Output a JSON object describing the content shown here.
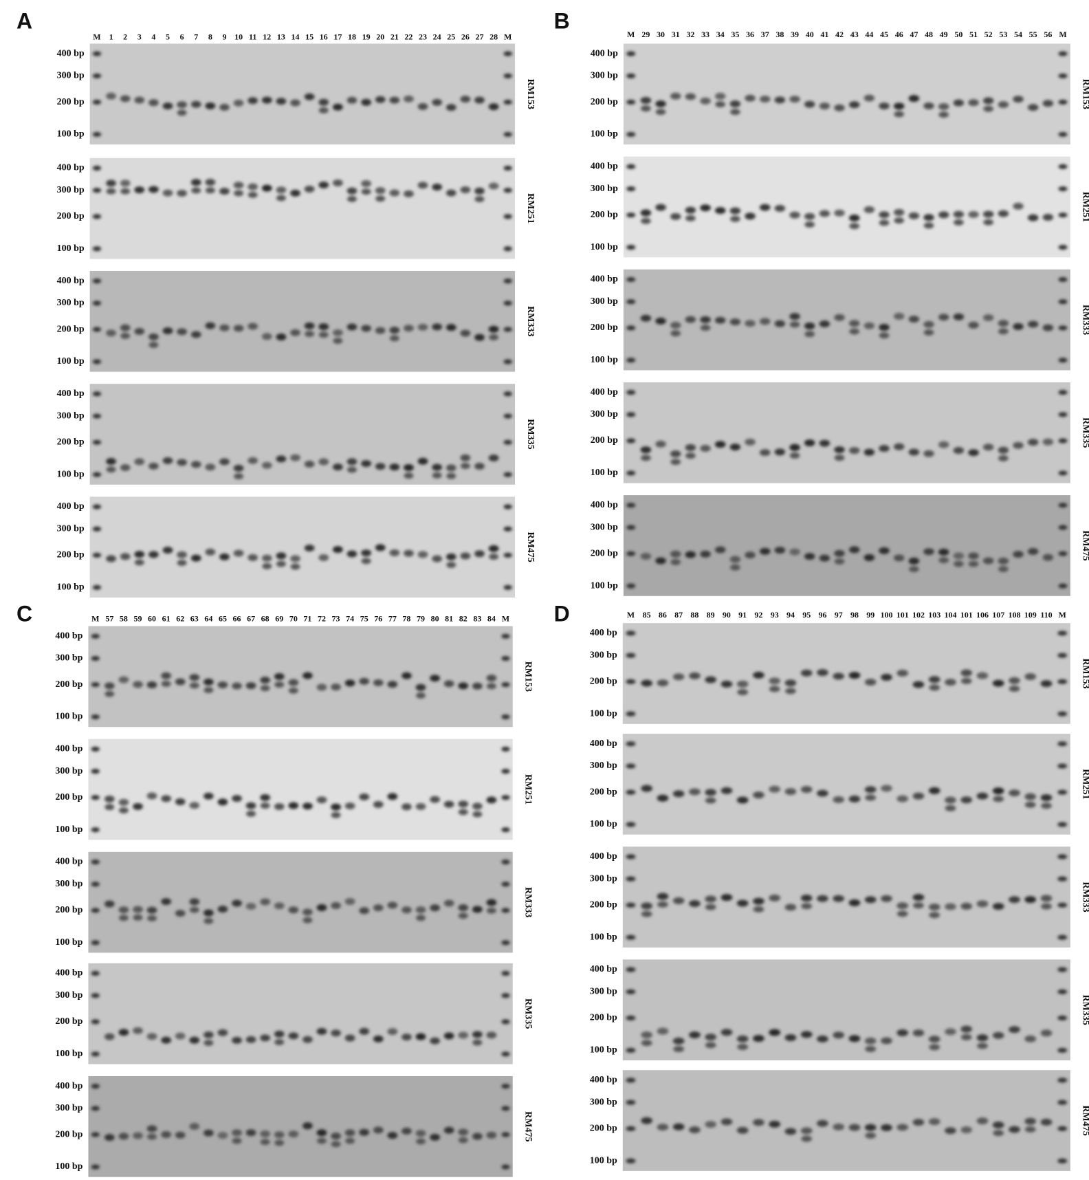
{
  "panels": [
    {
      "letter": "A",
      "lanes": [
        "M",
        "1",
        "2",
        "3",
        "4",
        "5",
        "6",
        "7",
        "8",
        "9",
        "10",
        "11",
        "12",
        "13",
        "14",
        "15",
        "16",
        "17",
        "18",
        "19",
        "20",
        "21",
        "22",
        "23",
        "24",
        "25",
        "26",
        "27",
        "28",
        "M"
      ],
      "gels": [
        {
          "marker": "RM153",
          "ladder": [
            "400 bp",
            "300 bp",
            "200 bp",
            "100 bp"
          ]
        },
        {
          "marker": "RM251",
          "ladder": [
            "400 bp",
            "300 bp",
            "200 bp",
            "100 bp"
          ]
        },
        {
          "marker": "RM333",
          "ladder": [
            "400 bp",
            "300 bp",
            "200 bp",
            "100 bp"
          ]
        },
        {
          "marker": "RM335",
          "ladder": [
            "400 bp",
            "300 bp",
            "200 bp",
            "100 bp"
          ]
        },
        {
          "marker": "RM475",
          "ladder": [
            "400 bp",
            "300 bp",
            "200 bp",
            "100 bp"
          ]
        }
      ]
    },
    {
      "letter": "B",
      "lanes": [
        "M",
        "29",
        "30",
        "31",
        "32",
        "33",
        "34",
        "35",
        "36",
        "37",
        "38",
        "39",
        "40",
        "41",
        "42",
        "43",
        "44",
        "45",
        "46",
        "47",
        "48",
        "49",
        "50",
        "51",
        "52",
        "53",
        "54",
        "55",
        "56",
        "M"
      ],
      "gels": [
        {
          "marker": "RM153",
          "ladder": [
            "400 bp",
            "300 bp",
            "200 bp",
            "100 bp"
          ]
        },
        {
          "marker": "RM251",
          "ladder": [
            "400 bp",
            "300 bp",
            "200 bp",
            "100 bp"
          ]
        },
        {
          "marker": "RM333",
          "ladder": [
            "400 bp",
            "300 bp",
            "200 bp",
            "100 bp"
          ]
        },
        {
          "marker": "RM335",
          "ladder": [
            "400 bp",
            "300 bp",
            "200 bp",
            "100 bp"
          ]
        },
        {
          "marker": "RM475",
          "ladder": [
            "400 bp",
            "300 bp",
            "200 bp",
            "100 bp"
          ]
        }
      ]
    },
    {
      "letter": "C",
      "lanes": [
        "M",
        "57",
        "58",
        "59",
        "60",
        "61",
        "62",
        "63",
        "64",
        "65",
        "66",
        "67",
        "68",
        "69",
        "70",
        "71",
        "72",
        "73",
        "74",
        "75",
        "76",
        "77",
        "78",
        "79",
        "80",
        "81",
        "82",
        "83",
        "84",
        "M"
      ],
      "gels": [
        {
          "marker": "RM153",
          "ladder": [
            "400 bp",
            "300 bp",
            "200 bp",
            "100 bp"
          ]
        },
        {
          "marker": "RM251",
          "ladder": [
            "400 bp",
            "300 bp",
            "200 bp",
            "100 bp"
          ]
        },
        {
          "marker": "RM333",
          "ladder": [
            "400 bp",
            "300 bp",
            "200 bp",
            "100 bp"
          ]
        },
        {
          "marker": "RM335",
          "ladder": [
            "400 bp",
            "300 bp",
            "200 bp",
            "100 bp"
          ]
        },
        {
          "marker": "RM475",
          "ladder": [
            "400 bp",
            "300 bp",
            "200 bp",
            "100 bp"
          ]
        }
      ]
    },
    {
      "letter": "D",
      "lanes": [
        "M",
        "85",
        "86",
        "87",
        "88",
        "89",
        "90",
        "91",
        "92",
        "93",
        "94",
        "95",
        "96",
        "97",
        "98",
        "99",
        "100",
        "101",
        "102",
        "103",
        "104",
        "101",
        "106",
        "107",
        "108",
        "109",
        "110",
        "M"
      ],
      "gels": [
        {
          "marker": "RM153",
          "ladder": [
            "400 bp",
            "300 bp",
            "200 bp",
            "100 bp"
          ]
        },
        {
          "marker": "RM251",
          "ladder": [
            "400 bp",
            "300 bp",
            "200 bp",
            "100 bp"
          ]
        },
        {
          "marker": "RM333",
          "ladder": [
            "400 bp",
            "300 bp",
            "200 bp",
            "100 bp"
          ]
        },
        {
          "marker": "RM335",
          "ladder": [
            "400 bp",
            "300 bp",
            "200 bp",
            "100 bp"
          ]
        },
        {
          "marker": "RM475",
          "ladder": [
            "400 bp",
            "300 bp",
            "200 bp",
            "100 bp"
          ]
        }
      ]
    }
  ]
}
